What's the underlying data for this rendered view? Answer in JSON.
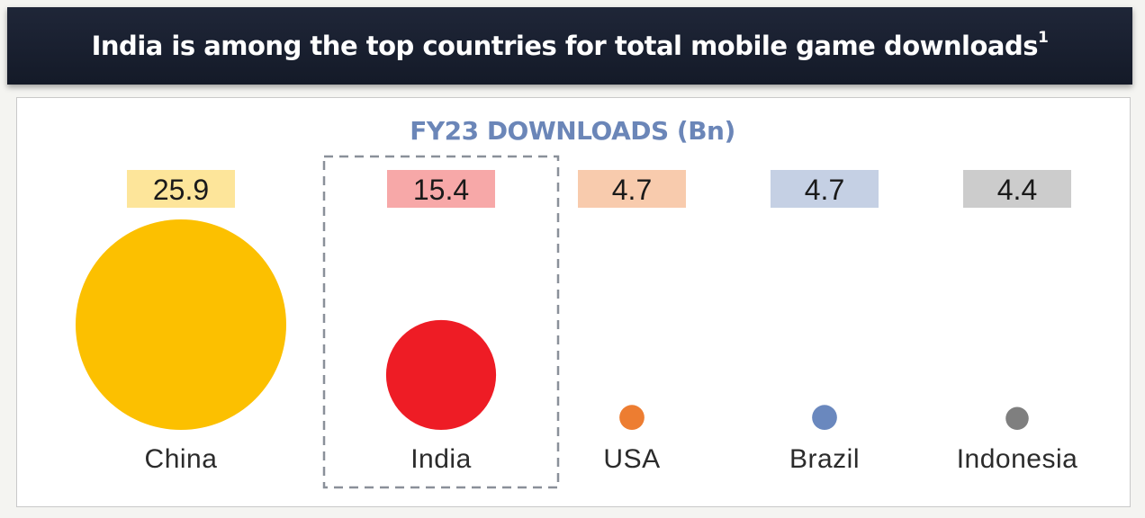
{
  "header": {
    "title": "India is among the top countries for total mobile game downloads",
    "footnote_marker": "1"
  },
  "chart_data": {
    "type": "bubble",
    "title": "FY23 DOWNLOADS (Bn)",
    "categories": [
      "China",
      "India",
      "USA",
      "Brazil",
      "Indonesia"
    ],
    "values": [
      25.9,
      15.4,
      4.7,
      4.7,
      4.4
    ],
    "value_labels": [
      "25.9",
      "15.4",
      "4.7",
      "4.7",
      "4.4"
    ],
    "bubble_colors": [
      "#fcc000",
      "#ee1c25",
      "#ed7d31",
      "#6a88be",
      "#7f7f7f"
    ],
    "label_box_colors": [
      "#fde59a",
      "#f7a8a8",
      "#f8cbad",
      "#c5d0e4",
      "#cccccc"
    ],
    "highlighted_category": "India"
  }
}
